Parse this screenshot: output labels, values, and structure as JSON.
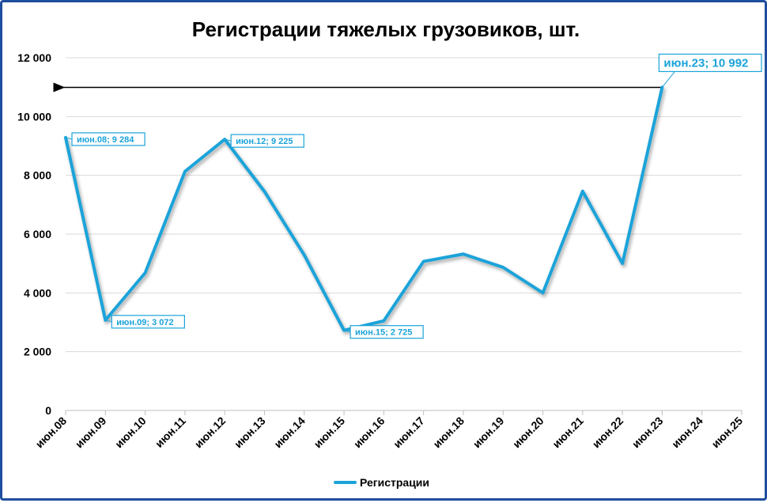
{
  "chart_data": {
    "type": "line",
    "title": "Регистрации тяжелых грузовиков, шт.",
    "categories": [
      "июн.08",
      "июн.09",
      "июн.10",
      "июн.11",
      "июн.12",
      "июн.13",
      "июн.14",
      "июн.15",
      "июн.16",
      "июн.17",
      "июн.18",
      "июн.19",
      "июн.20",
      "июн.21",
      "июн.22",
      "июн.23",
      "июн.24",
      "июн.25"
    ],
    "yticks": [
      "0",
      "2 000",
      "4 000",
      "6 000",
      "8 000",
      "10 000",
      "12 000"
    ],
    "ylim": [
      0,
      12000
    ],
    "grid": true,
    "legend_position": "bottom",
    "series": [
      {
        "name": "Регистрации",
        "color": "#1aa3d9",
        "values": [
          9284,
          3072,
          4680,
          8130,
          9225,
          7450,
          5290,
          2725,
          3050,
          5070,
          5320,
          4870,
          4000,
          7460,
          5000,
          10992,
          null,
          null
        ]
      }
    ],
    "annotations": [
      {
        "index": 0,
        "label": "июн.08; 9 284"
      },
      {
        "index": 1,
        "label": "июн.09; 3 072"
      },
      {
        "index": 4,
        "label": "июн.12; 9 225"
      },
      {
        "index": 7,
        "label": "июн.15; 2 725"
      },
      {
        "index": 15,
        "label": "июн.23; 10 992",
        "emphasis": true
      }
    ],
    "arrow": {
      "from_index": 15,
      "value": 10992,
      "direction": "left"
    }
  }
}
